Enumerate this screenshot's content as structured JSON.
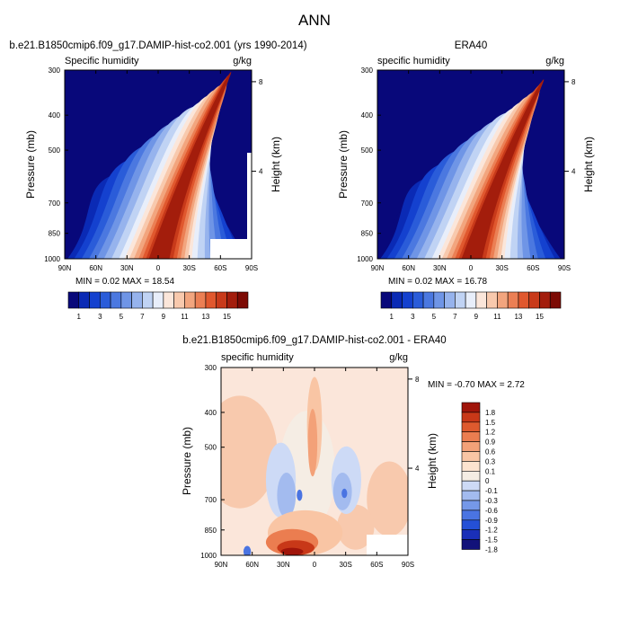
{
  "page": {
    "main_title": "ANN"
  },
  "colors": {
    "seq_cmap": [
      "#08087a",
      "#0a2ab5",
      "#1441cf",
      "#2a5cd9",
      "#4b78e0",
      "#6f95e6",
      "#96b3ed",
      "#c0d3f4",
      "#e8eefa",
      "#fbe6da",
      "#f8c9ad",
      "#f2a57e",
      "#eb7f54",
      "#e0582e",
      "#c83a1a",
      "#a31d0c",
      "#7c0a04"
    ],
    "diff_cmap": [
      "#12127a",
      "#1a2fb8",
      "#2450d6",
      "#4a74e2",
      "#7598e8",
      "#a3bbef",
      "#cddaf6",
      "#f5ede4",
      "#fce3cf",
      "#f9c5a4",
      "#f3a178",
      "#eb7d50",
      "#de5a2e",
      "#c83818",
      "#a0150a"
    ]
  },
  "chart_data": [
    {
      "id": "panel-model",
      "type": "contour",
      "title": "b.e21.B1850cmip6.f09_g17.DAMIP-hist-co2.001 (yrs 1990-2014)",
      "left_string": "Specific humidity",
      "right_string": "g/kg",
      "ylabel": "Pressure (mb)",
      "y2label": "Height (km)",
      "x_ticks": [
        "90N",
        "60N",
        "30N",
        "0",
        "30S",
        "60S",
        "90S"
      ],
      "y_ticks": [
        1000,
        850,
        700,
        500,
        400,
        300
      ],
      "y2_ticks": [
        4,
        8
      ],
      "ylim": [
        1000,
        300
      ],
      "xlim": [
        90,
        -90
      ],
      "stats": "MIN =   0.02  MAX =  18.54",
      "min": 0.02,
      "max": 18.54,
      "colorbar": {
        "levels": [
          1,
          2,
          3,
          4,
          5,
          6,
          7,
          8,
          9,
          10,
          11,
          12,
          13,
          14,
          15,
          16
        ],
        "labels": [
          "1",
          "3",
          "5",
          "7",
          "9",
          "11",
          "13",
          "15"
        ]
      }
    },
    {
      "id": "panel-obs",
      "type": "contour",
      "title": "ERA40",
      "left_string": "specific humidity",
      "right_string": "g/kg",
      "ylabel": "Pressure (mb)",
      "y2label": "Height (km)",
      "x_ticks": [
        "90N",
        "60N",
        "30N",
        "0",
        "30S",
        "60S",
        "90S"
      ],
      "y_ticks": [
        1000,
        850,
        700,
        500,
        400,
        300
      ],
      "y2_ticks": [
        4,
        8
      ],
      "ylim": [
        1000,
        300
      ],
      "xlim": [
        90,
        -90
      ],
      "stats": "MIN =   0.02  MAX =  16.78",
      "min": 0.02,
      "max": 16.78,
      "colorbar": {
        "levels": [
          1,
          2,
          3,
          4,
          5,
          6,
          7,
          8,
          9,
          10,
          11,
          12,
          13,
          14,
          15,
          16
        ],
        "labels": [
          "1",
          "3",
          "5",
          "7",
          "9",
          "11",
          "13",
          "15"
        ]
      }
    },
    {
      "id": "panel-diff",
      "type": "contour",
      "title": "b.e21.B1850cmip6.f09_g17.DAMIP-hist-co2.001 - ERA40",
      "left_string": "specific humidity",
      "right_string": "g/kg",
      "ylabel": "Pressure (mb)",
      "y2label": "Height (km)",
      "x_ticks": [
        "90N",
        "60N",
        "30N",
        "0",
        "30S",
        "60S",
        "90S"
      ],
      "y_ticks": [
        1000,
        850,
        700,
        500,
        400,
        300
      ],
      "y2_ticks": [
        4,
        8
      ],
      "ylim": [
        1000,
        300
      ],
      "xlim": [
        90,
        -90
      ],
      "stats": "MIN =  -0.70  MAX =   2.72",
      "min": -0.7,
      "max": 2.72,
      "colorbar": {
        "levels": [
          1.8,
          1.5,
          1.2,
          0.9,
          0.6,
          0.3,
          0.1,
          0,
          -0.1,
          -0.3,
          -0.6,
          -0.9,
          -1.2,
          -1.5,
          -1.8
        ],
        "labels": [
          "1.8",
          "1.5",
          "1.2",
          "0.9",
          "0.6",
          "0.3",
          "0.1",
          "0",
          "-0.1",
          "-0.3",
          "-0.6",
          "-0.9",
          "-1.2",
          "-1.5",
          "-1.8"
        ]
      }
    }
  ]
}
